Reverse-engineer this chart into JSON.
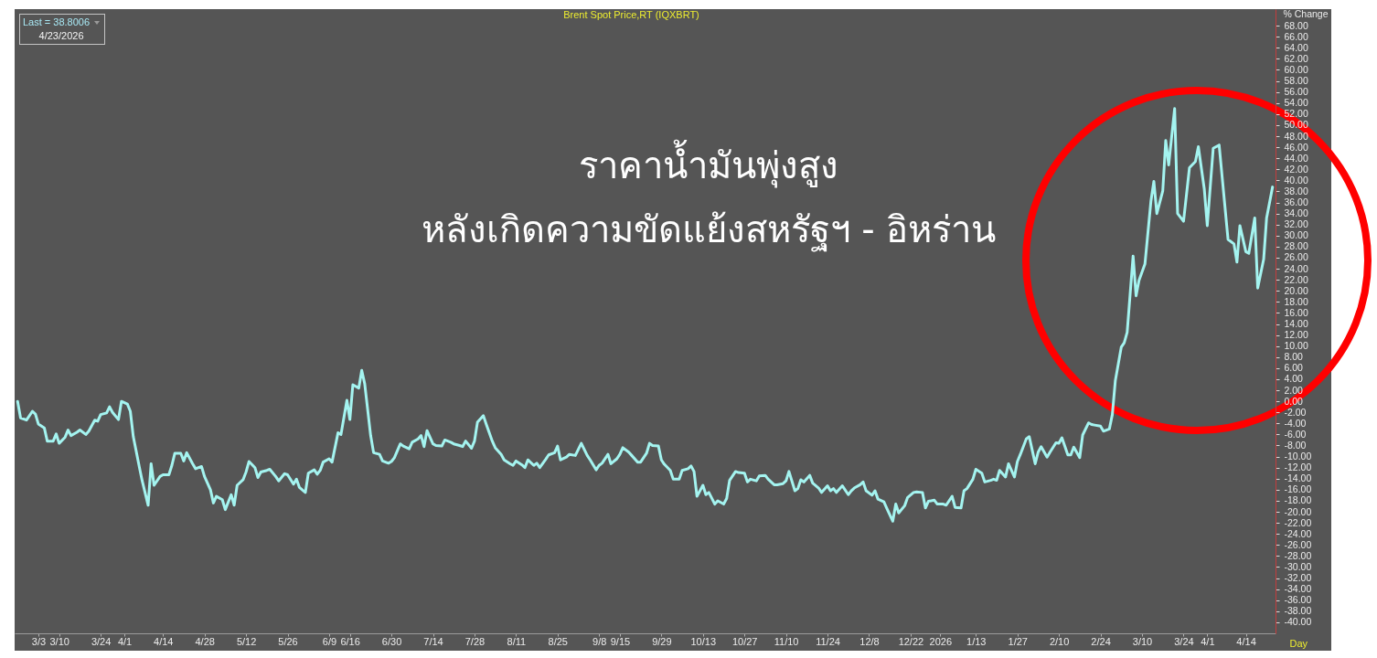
{
  "chart_data": {
    "type": "line",
    "title": "Brent Spot Price,RT (IQXBRT)",
    "xlabel": "Day",
    "ylabel": "% Change",
    "annotations": [
      "Last = 38.8006",
      "4/23/2026",
      "ราคาน้ำมันพุ่งสูง",
      "หลังเกิดความขัดแย้งสหรัฐฯ - อิหร่าน"
    ],
    "color": "#a4f4f0",
    "x": [
      "2025-02-24",
      "2025-02-25",
      "2025-02-27",
      "2025-03-01",
      "2025-03-02",
      "2025-03-03",
      "2025-03-05",
      "2025-03-06",
      "2025-03-08",
      "2025-03-09",
      "2025-03-10",
      "2025-03-12",
      "2025-03-13",
      "2025-03-14",
      "2025-03-16",
      "2025-03-17",
      "2025-03-19",
      "2025-03-20",
      "2025-03-22",
      "2025-03-23",
      "2025-03-24",
      "2025-03-26",
      "2025-03-27",
      "2025-03-28",
      "2025-03-30",
      "2025-03-31",
      "2025-04-02",
      "2025-04-03",
      "2025-04-04",
      "2025-04-06",
      "2025-04-07",
      "2025-04-09",
      "2025-04-10",
      "2025-04-11",
      "2025-04-13",
      "2025-04-14",
      "2025-04-16",
      "2025-04-17",
      "2025-04-18",
      "2025-04-20",
      "2025-04-21",
      "2025-04-22",
      "2025-04-24",
      "2025-04-25",
      "2025-04-27",
      "2025-04-28",
      "2025-04-30",
      "2025-05-01",
      "2025-05-02",
      "2025-05-04",
      "2025-05-05",
      "2025-05-07",
      "2025-05-08",
      "2025-05-09",
      "2025-05-11",
      "2025-05-12",
      "2025-05-13",
      "2025-05-15",
      "2025-05-16",
      "2025-05-17",
      "2025-05-19",
      "2025-05-20",
      "2025-05-22",
      "2025-05-23",
      "2025-05-25",
      "2025-05-26",
      "2025-05-28",
      "2025-05-29",
      "2025-05-30",
      "2025-06-01",
      "2025-06-02",
      "2025-06-04",
      "2025-06-05",
      "2025-06-06",
      "2025-06-07",
      "2025-06-09",
      "2025-06-10",
      "2025-06-12",
      "2025-06-13",
      "2025-06-15",
      "2025-06-16",
      "2025-06-17",
      "2025-06-19",
      "2025-06-20",
      "2025-06-21",
      "2025-06-23",
      "2025-06-24",
      "2025-06-26",
      "2025-06-27",
      "2025-06-29",
      "2025-06-30",
      "2025-07-01",
      "2025-07-03",
      "2025-07-04",
      "2025-07-06",
      "2025-07-07",
      "2025-07-09",
      "2025-07-10",
      "2025-07-11",
      "2025-07-12",
      "2025-07-14",
      "2025-07-15",
      "2025-07-17",
      "2025-07-18",
      "2025-07-20",
      "2025-07-21",
      "2025-07-23",
      "2025-07-24",
      "2025-07-25",
      "2025-07-27",
      "2025-07-28",
      "2025-07-29",
      "2025-07-31",
      "2025-08-01",
      "2025-08-03",
      "2025-08-04",
      "2025-08-06",
      "2025-08-07",
      "2025-08-09",
      "2025-08-10",
      "2025-08-11",
      "2025-08-13",
      "2025-08-14",
      "2025-08-15",
      "2025-08-17",
      "2025-08-18",
      "2025-08-19",
      "2025-08-21",
      "2025-08-22",
      "2025-08-24",
      "2025-08-25",
      "2025-08-26",
      "2025-08-28",
      "2025-08-29",
      "2025-08-31",
      "2025-09-02",
      "2025-09-04",
      "2025-09-05",
      "2025-09-07",
      "2025-09-08",
      "2025-09-09",
      "2025-09-11",
      "2025-09-12",
      "2025-09-14",
      "2025-09-15",
      "2025-09-16",
      "2025-09-18",
      "2025-09-19",
      "2025-09-21",
      "2025-09-22",
      "2025-09-24",
      "2025-09-25",
      "2025-09-26",
      "2025-09-28",
      "2025-09-29",
      "2025-09-30",
      "2025-10-02",
      "2025-10-03",
      "2025-10-05",
      "2025-10-06",
      "2025-10-08",
      "2025-10-09",
      "2025-10-10",
      "2025-10-11",
      "2025-10-13",
      "2025-10-14",
      "2025-10-15",
      "2025-10-17",
      "2025-10-18",
      "2025-10-20",
      "2025-10-21",
      "2025-10-22",
      "2025-10-24",
      "2025-10-25",
      "2025-10-27",
      "2025-10-28",
      "2025-10-29",
      "2025-10-31",
      "2025-11-01",
      "2025-11-03",
      "2025-11-04",
      "2025-11-06",
      "2025-11-07",
      "2025-11-09",
      "2025-11-10",
      "2025-11-11",
      "2025-11-13",
      "2025-11-14",
      "2025-11-15",
      "2025-11-16",
      "2025-11-18",
      "2025-11-19",
      "2025-11-21",
      "2025-11-22",
      "2025-11-24",
      "2025-11-25",
      "2025-11-26",
      "2025-11-27",
      "2025-11-29",
      "2025-12-01",
      "2025-12-02",
      "2025-12-03",
      "2025-12-05",
      "2025-12-06",
      "2025-12-07",
      "2025-12-09",
      "2025-12-10",
      "2025-12-11",
      "2025-12-13",
      "2025-12-14",
      "2025-12-16",
      "2025-12-17",
      "2025-12-18",
      "2025-12-20",
      "2025-12-21",
      "2025-12-23",
      "2025-12-24",
      "2025-12-26",
      "2025-12-27",
      "2025-12-28",
      "2025-12-30",
      "2025-12-31",
      "2026-01-02",
      "2026-01-03",
      "2026-01-05",
      "2026-01-06",
      "2026-01-08",
      "2026-01-09",
      "2026-01-10",
      "2026-01-12",
      "2026-01-13",
      "2026-01-15",
      "2026-01-16",
      "2026-01-18",
      "2026-01-19",
      "2026-01-20",
      "2026-01-21",
      "2026-01-23",
      "2026-01-24",
      "2026-01-26",
      "2026-01-27",
      "2026-01-28",
      "2026-01-30",
      "2026-01-31",
      "2026-02-02",
      "2026-02-03",
      "2026-02-04",
      "2026-02-06",
      "2026-02-07",
      "2026-02-09",
      "2026-02-10",
      "2026-02-11",
      "2026-02-13",
      "2026-02-14",
      "2026-02-15",
      "2026-02-17",
      "2026-02-18",
      "2026-02-20",
      "2026-02-21",
      "2026-02-22",
      "2026-02-24",
      "2026-02-25",
      "2026-02-27",
      "2026-02-28",
      "2026-03-01",
      "2026-03-03",
      "2026-03-04",
      "2026-03-05",
      "2026-03-07",
      "2026-03-08",
      "2026-03-09",
      "2026-03-11",
      "2026-03-13",
      "2026-03-14",
      "2026-03-15",
      "2026-03-17",
      "2026-03-18",
      "2026-03-19",
      "2026-03-21",
      "2026-03-22",
      "2026-03-24",
      "2026-03-26",
      "2026-03-28",
      "2026-03-29",
      "2026-03-31",
      "2026-04-01",
      "2026-04-03",
      "2026-04-05",
      "2026-04-08",
      "2026-04-10",
      "2026-04-11",
      "2026-04-12",
      "2026-04-14",
      "2026-04-15",
      "2026-04-17",
      "2026-04-18",
      "2026-04-20",
      "2026-04-21",
      "2026-04-23"
    ],
    "values": [
      0,
      -3.0,
      -3.4,
      -1.8,
      -2.3,
      -4.1,
      -4.8,
      -7.2,
      -7.2,
      -5.9,
      -7.6,
      -6.5,
      -5.2,
      -6.2,
      -5.6,
      -5.2,
      -6.0,
      -5.4,
      -3.4,
      -3.6,
      -2.4,
      -2.1,
      -1.0,
      -2.0,
      -3.3,
      0.0,
      -0.5,
      -1.8,
      -6.4,
      -11.8,
      -14.4,
      -18.8,
      -11.3,
      -15.2,
      -13.6,
      -13.3,
      -13.3,
      -11.6,
      -9.4,
      -9.4,
      -10.8,
      -9.3,
      -11.3,
      -12.2,
      -11.8,
      -13.6,
      -16.0,
      -18.4,
      -17.2,
      -17.8,
      -19.6,
      -16.9,
      -18.8,
      -15.2,
      -14.2,
      -12.8,
      -10.9,
      -12.0,
      -13.8,
      -12.8,
      -12.5,
      -12.3,
      -13.6,
      -14.4,
      -13.1,
      -13.3,
      -15.0,
      -14.1,
      -15.6,
      -16.5,
      -13.0,
      -12.4,
      -13.2,
      -12.5,
      -11.0,
      -10.4,
      -11.0,
      -5.7,
      -6.0,
      0.2,
      -3.3,
      3.0,
      2.4,
      5.6,
      3.2,
      -6.2,
      -9.3,
      -9.6,
      -10.8,
      -11.2,
      -10.9,
      -10.2,
      -7.7,
      -8.1,
      -8.6,
      -7.4,
      -6.8,
      -6.2,
      -8.2,
      -5.3,
      -7.7,
      -8.0,
      -8.1,
      -7.0,
      -7.4,
      -7.7,
      -8.0,
      -8.2,
      -7.2,
      -8.5,
      -7.2,
      -3.8,
      -2.6,
      -4.2,
      -7.2,
      -8.4,
      -9.6,
      -10.6,
      -11.3,
      -11.6,
      -10.8,
      -11.5,
      -12.0,
      -10.6,
      -11.6,
      -11.2,
      -12.0,
      -10.5,
      -9.7,
      -9.3,
      -8.1,
      -10.6,
      -10.1,
      -9.6,
      -9.8,
      -7.6,
      -9.8,
      -10.6,
      -12.4,
      -11.6,
      -11.2,
      -9.6,
      -11.3,
      -10.4,
      -9.6,
      -8.4,
      -9.2,
      -9.8,
      -11.0,
      -11.0,
      -9.4,
      -7.6,
      -8.0,
      -8.1,
      -10.6,
      -11.4,
      -12.5,
      -14.1,
      -14.1,
      -12.5,
      -12.2,
      -11.7,
      -12.7,
      -17.2,
      -15.2,
      -16.9,
      -16.5,
      -18.6,
      -18.0,
      -18.6,
      -17.6,
      -14.3,
      -12.7,
      -12.9,
      -13.0,
      -14.6,
      -14.1,
      -14.4,
      -13.5,
      -13.4,
      -14.1,
      -15.1,
      -15.1,
      -14.9,
      -14.4,
      -12.7,
      -16.2,
      -15.8,
      -14.2,
      -14.6,
      -13.4,
      -14.8,
      -15.7,
      -16.5,
      -15.3,
      -16.2,
      -15.8,
      -16.5,
      -15.3,
      -16.9,
      -16.2,
      -15.7,
      -15.1,
      -14.6,
      -16.2,
      -17.0,
      -16.2,
      -17.7,
      -18.2,
      -19.4,
      -21.7,
      -18.6,
      -20.2,
      -18.9,
      -17.4,
      -16.5,
      -16.4,
      -16.5,
      -19.3,
      -18.1,
      -17.9,
      -18.6,
      -18.6,
      -18.8,
      -17.2,
      -19.2,
      -19.3,
      -16.2,
      -15.8,
      -14.1,
      -12.3,
      -13.0,
      -14.6,
      -14.3,
      -14.1,
      -14.3,
      -12.5,
      -13.7,
      -11.3,
      -13.7,
      -10.9,
      -9.6,
      -6.8,
      -6.4,
      -11.3,
      -9.2,
      -8.2,
      -10.1,
      -9.2,
      -7.5,
      -7.6,
      -6.6,
      -9.7,
      -9.7,
      -8.3,
      -10.2,
      -6.1,
      -3.9,
      -4.2,
      -4.3,
      -4.5,
      -5.4,
      -5.0,
      -2.4,
      3.7,
      9.8,
      10.6,
      12.5,
      26.3,
      19.1,
      21.9,
      24.9,
      36.2,
      39.8,
      34.0,
      38.1,
      47.2,
      42.8,
      53.0,
      34.0,
      32.6,
      42.3,
      43.4,
      46.1,
      38.4,
      31.8,
      45.8,
      46.4,
      29.3,
      28.5,
      25.2,
      31.8,
      27.1,
      26.8,
      33.2,
      20.5,
      25.7,
      33.2,
      38.8
    ],
    "xlim": [
      "2025-02-23",
      "2026-04-24"
    ],
    "xticks": [
      {
        "value": "2025-03-03",
        "label": "3/3"
      },
      {
        "value": "2025-03-10",
        "label": "3/10"
      },
      {
        "value": "2025-03-24",
        "label": "3/24"
      },
      {
        "value": "2025-04-01",
        "label": "4/1"
      },
      {
        "value": "2025-04-14",
        "label": "4/14"
      },
      {
        "value": "2025-04-28",
        "label": "4/28"
      },
      {
        "value": "2025-05-12",
        "label": "5/12"
      },
      {
        "value": "2025-05-26",
        "label": "5/26"
      },
      {
        "value": "2025-06-09",
        "label": "6/9"
      },
      {
        "value": "2025-06-16",
        "label": "6/16"
      },
      {
        "value": "2025-06-30",
        "label": "6/30"
      },
      {
        "value": "2025-07-14",
        "label": "7/14"
      },
      {
        "value": "2025-07-28",
        "label": "7/28"
      },
      {
        "value": "2025-08-11",
        "label": "8/11"
      },
      {
        "value": "2025-08-25",
        "label": "8/25"
      },
      {
        "value": "2025-09-08",
        "label": "9/8"
      },
      {
        "value": "2025-09-15",
        "label": "9/15"
      },
      {
        "value": "2025-09-29",
        "label": "9/29"
      },
      {
        "value": "2025-10-13",
        "label": "10/13"
      },
      {
        "value": "2025-10-27",
        "label": "10/27"
      },
      {
        "value": "2025-11-10",
        "label": "11/10"
      },
      {
        "value": "2025-11-24",
        "label": "11/24"
      },
      {
        "value": "2025-12-08",
        "label": "12/8"
      },
      {
        "value": "2025-12-22",
        "label": "12/22"
      },
      {
        "value": "2026-01-01",
        "label": "2026"
      },
      {
        "value": "2026-01-13",
        "label": "1/13"
      },
      {
        "value": "2026-01-27",
        "label": "1/27"
      },
      {
        "value": "2026-02-10",
        "label": "2/10"
      },
      {
        "value": "2026-02-24",
        "label": "2/24"
      },
      {
        "value": "2026-03-10",
        "label": "3/10"
      },
      {
        "value": "2026-03-24",
        "label": "3/24"
      },
      {
        "value": "2026-04-01",
        "label": "4/1"
      },
      {
        "value": "2026-04-14",
        "label": "4/14"
      }
    ],
    "ylim": [
      -42,
      71
    ],
    "yticks": [
      {
        "value": -40,
        "label": "-40.00"
      },
      {
        "value": -38,
        "label": "-38.00"
      },
      {
        "value": -36,
        "label": "-36.00"
      },
      {
        "value": -34,
        "label": "-34.00"
      },
      {
        "value": -32,
        "label": "-32.00"
      },
      {
        "value": -30,
        "label": "-30.00"
      },
      {
        "value": -28,
        "label": "-28.00"
      },
      {
        "value": -26,
        "label": "-26.00"
      },
      {
        "value": -24,
        "label": "-24.00"
      },
      {
        "value": -22,
        "label": "-22.00"
      },
      {
        "value": -20,
        "label": "-20.00"
      },
      {
        "value": -18,
        "label": "-18.00"
      },
      {
        "value": -16,
        "label": "-16.00"
      },
      {
        "value": -14,
        "label": "-14.00"
      },
      {
        "value": -12,
        "label": "-12.00"
      },
      {
        "value": -10,
        "label": "-10.00"
      },
      {
        "value": -8,
        "label": "-8.00"
      },
      {
        "value": -6,
        "label": "-6.00"
      },
      {
        "value": -4,
        "label": "-4.00"
      },
      {
        "value": -2,
        "label": "-2.00"
      },
      {
        "value": 0,
        "label": "0.00"
      },
      {
        "value": 2,
        "label": "2.00"
      },
      {
        "value": 4,
        "label": "4.00"
      },
      {
        "value": 6,
        "label": "6.00"
      },
      {
        "value": 8,
        "label": "8.00"
      },
      {
        "value": 10,
        "label": "10.00"
      },
      {
        "value": 12,
        "label": "12.00"
      },
      {
        "value": 14,
        "label": "14.00"
      },
      {
        "value": 16,
        "label": "16.00"
      },
      {
        "value": 18,
        "label": "18.00"
      },
      {
        "value": 20,
        "label": "20.00"
      },
      {
        "value": 22,
        "label": "22.00"
      },
      {
        "value": 24,
        "label": "24.00"
      },
      {
        "value": 26,
        "label": "26.00"
      },
      {
        "value": 28,
        "label": "28.00"
      },
      {
        "value": 30,
        "label": "30.00"
      },
      {
        "value": 32,
        "label": "32.00"
      },
      {
        "value": 34,
        "label": "34.00"
      },
      {
        "value": 36,
        "label": "36.00"
      },
      {
        "value": 38,
        "label": "38.00"
      },
      {
        "value": 40,
        "label": "40.00"
      },
      {
        "value": 42,
        "label": "42.00"
      },
      {
        "value": 44,
        "label": "44.00"
      },
      {
        "value": 46,
        "label": "46.00"
      },
      {
        "value": 48,
        "label": "48.00"
      },
      {
        "value": 50,
        "label": "50.00"
      },
      {
        "value": 52,
        "label": "52.00"
      },
      {
        "value": 54,
        "label": "54.00"
      },
      {
        "value": 56,
        "label": "56.00"
      },
      {
        "value": 58,
        "label": "58.00"
      },
      {
        "value": 60,
        "label": "60.00"
      },
      {
        "value": 62,
        "label": "62.00"
      },
      {
        "value": 64,
        "label": "64.00"
      },
      {
        "value": 66,
        "label": "66.00"
      },
      {
        "value": 68,
        "label": "68.00"
      }
    ]
  }
}
